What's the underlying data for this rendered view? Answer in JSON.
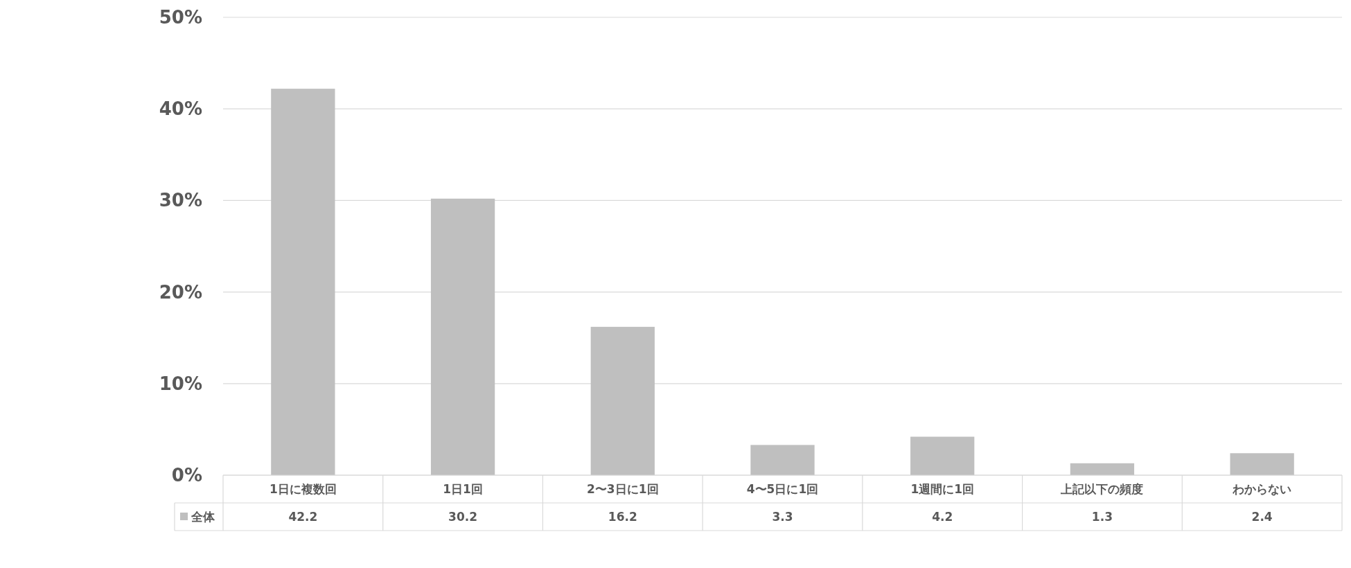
{
  "chart_data": {
    "type": "bar",
    "categories": [
      "1日に複数回",
      "1日1回",
      "2〜3日に1回",
      "4〜5日に1回",
      "1週間に1回",
      "上記以下の頻度",
      "わからない"
    ],
    "series": [
      {
        "name": "全体",
        "color": "#bfbfbf",
        "values": [
          42.2,
          30.2,
          16.2,
          3.3,
          4.2,
          1.3,
          2.4
        ]
      }
    ],
    "ylim": [
      0,
      50
    ],
    "yticks": [
      {
        "value": 0,
        "label": "0%"
      },
      {
        "value": 10,
        "label": "10%"
      },
      {
        "value": 20,
        "label": "20%"
      },
      {
        "value": 30,
        "label": "30%"
      },
      {
        "value": 40,
        "label": "40%"
      },
      {
        "value": 50,
        "label": "50%"
      }
    ],
    "grid": "y",
    "data_labels": true,
    "legend": "bottom"
  }
}
